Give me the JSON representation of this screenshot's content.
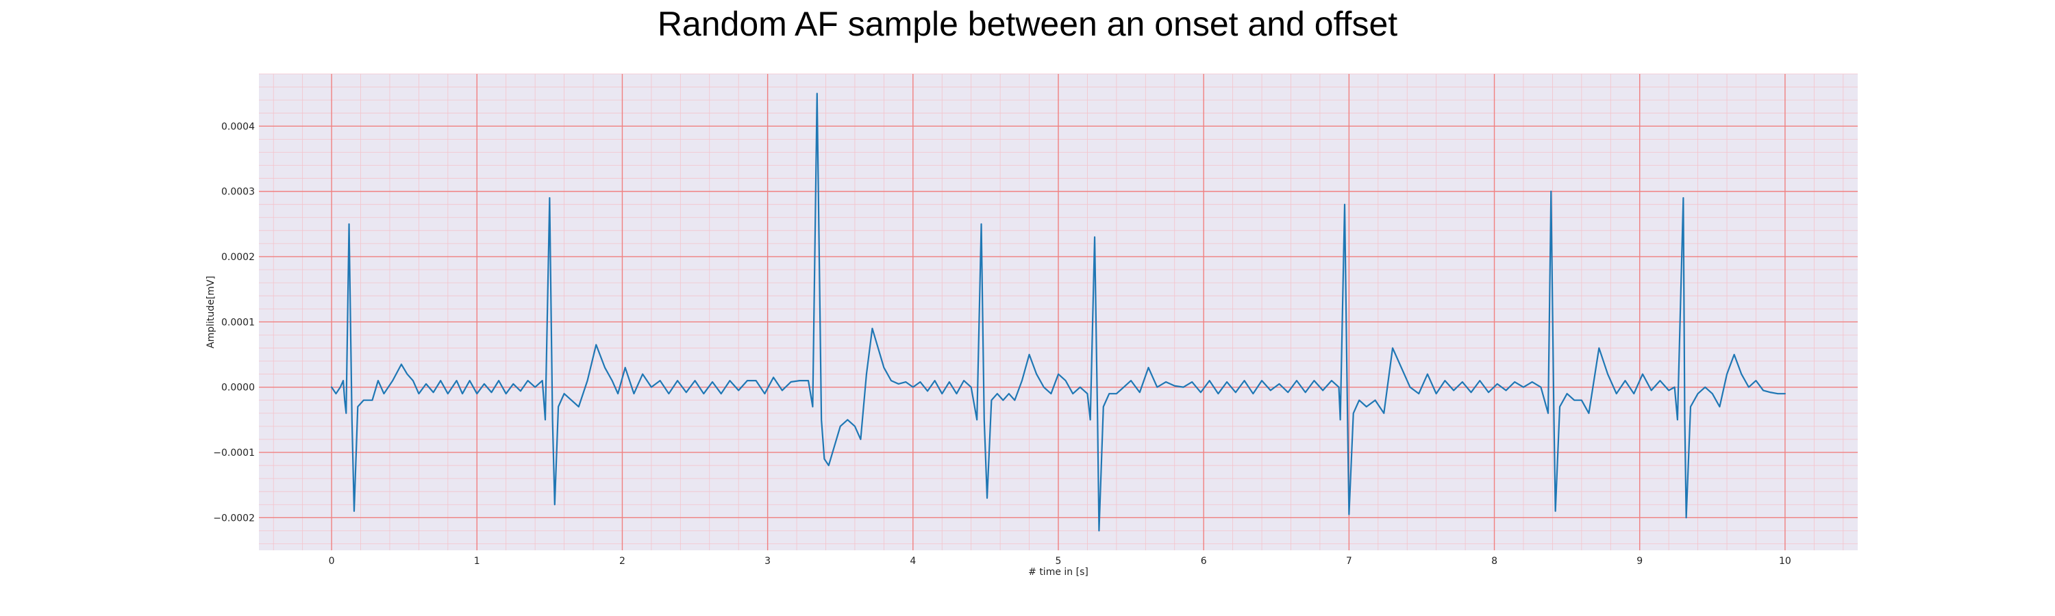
{
  "chart_data": {
    "type": "line",
    "title": "Random AF sample between an onset and offset",
    "xlabel": "# time in [s]",
    "ylabel": "Amplitude[mV]",
    "xlim": [
      -0.5,
      10.5
    ],
    "ylim": [
      -0.00025,
      0.00048
    ],
    "xticks": [
      0,
      1,
      2,
      3,
      4,
      5,
      6,
      7,
      8,
      9,
      10
    ],
    "xtick_labels": [
      "0",
      "1",
      "2",
      "3",
      "4",
      "5",
      "6",
      "7",
      "8",
      "9",
      "10"
    ],
    "yticks": [
      -0.0002,
      -0.0001,
      0.0,
      0.0001,
      0.0002,
      0.0003,
      0.0004
    ],
    "ytick_labels": [
      "−0.0002",
      "−0.0001",
      "0.0000",
      "0.0001",
      "0.0002",
      "0.0003",
      "0.0004"
    ],
    "grid": true,
    "minor_grid": true,
    "colors": {
      "line": "#1f77b4",
      "plot_background": "#eae7f2",
      "major_grid": "#f08080",
      "minor_grid": "#f4c3cb"
    },
    "series": [
      {
        "values": [
          [
            0.0,
            0.0
          ],
          [
            0.03,
            -1e-05
          ],
          [
            0.06,
            0.0
          ],
          [
            0.08,
            1e-05
          ],
          [
            0.09,
            -2e-05
          ],
          [
            0.1,
            -4e-05
          ],
          [
            0.12,
            0.00025
          ],
          [
            0.14,
            -5e-05
          ],
          [
            0.155,
            -0.00019
          ],
          [
            0.18,
            -3e-05
          ],
          [
            0.22,
            -2e-05
          ],
          [
            0.28,
            -2e-05
          ],
          [
            0.32,
            1e-05
          ],
          [
            0.36,
            -1e-05
          ],
          [
            0.42,
            1e-05
          ],
          [
            0.48,
            3.5e-05
          ],
          [
            0.52,
            2e-05
          ],
          [
            0.56,
            1e-05
          ],
          [
            0.6,
            -1e-05
          ],
          [
            0.65,
            5e-06
          ],
          [
            0.7,
            -8e-06
          ],
          [
            0.75,
            1e-05
          ],
          [
            0.8,
            -1e-05
          ],
          [
            0.86,
            1e-05
          ],
          [
            0.9,
            -1e-05
          ],
          [
            0.95,
            1e-05
          ],
          [
            1.0,
            -1e-05
          ],
          [
            1.05,
            5e-06
          ],
          [
            1.1,
            -8e-06
          ],
          [
            1.15,
            1e-05
          ],
          [
            1.2,
            -1e-05
          ],
          [
            1.25,
            5e-06
          ],
          [
            1.3,
            -6e-06
          ],
          [
            1.35,
            1e-05
          ],
          [
            1.4,
            0.0
          ],
          [
            1.45,
            1e-05
          ],
          [
            1.47,
            -5e-05
          ],
          [
            1.5,
            0.00029
          ],
          [
            1.52,
            -5e-05
          ],
          [
            1.535,
            -0.00018
          ],
          [
            1.56,
            -3e-05
          ],
          [
            1.6,
            -1e-05
          ],
          [
            1.65,
            -2e-05
          ],
          [
            1.7,
            -3e-05
          ],
          [
            1.76,
            1e-05
          ],
          [
            1.82,
            6.5e-05
          ],
          [
            1.88,
            3e-05
          ],
          [
            1.93,
            1e-05
          ],
          [
            1.97,
            -1e-05
          ],
          [
            2.02,
            3e-05
          ],
          [
            2.08,
            -1e-05
          ],
          [
            2.14,
            2e-05
          ],
          [
            2.2,
            0.0
          ],
          [
            2.26,
            1e-05
          ],
          [
            2.32,
            -1e-05
          ],
          [
            2.38,
            1e-05
          ],
          [
            2.44,
            -8e-06
          ],
          [
            2.5,
            1e-05
          ],
          [
            2.56,
            -1e-05
          ],
          [
            2.62,
            8e-06
          ],
          [
            2.68,
            -1e-05
          ],
          [
            2.74,
            1e-05
          ],
          [
            2.8,
            -5e-06
          ],
          [
            2.86,
            1e-05
          ],
          [
            2.92,
            1e-05
          ],
          [
            2.98,
            -1e-05
          ],
          [
            3.04,
            1.5e-05
          ],
          [
            3.1,
            -5e-06
          ],
          [
            3.16,
            8e-06
          ],
          [
            3.22,
            1e-05
          ],
          [
            3.28,
            1e-05
          ],
          [
            3.31,
            -3e-05
          ],
          [
            3.34,
            0.00045
          ],
          [
            3.37,
            -5e-05
          ],
          [
            3.39,
            -0.00011
          ],
          [
            3.42,
            -0.00012
          ],
          [
            3.46,
            -9e-05
          ],
          [
            3.5,
            -6e-05
          ],
          [
            3.55,
            -5e-05
          ],
          [
            3.6,
            -6e-05
          ],
          [
            3.64,
            -8e-05
          ],
          [
            3.68,
            2e-05
          ],
          [
            3.72,
            9e-05
          ],
          [
            3.76,
            6e-05
          ],
          [
            3.8,
            3e-05
          ],
          [
            3.85,
            1e-05
          ],
          [
            3.9,
            5e-06
          ],
          [
            3.95,
            8e-06
          ],
          [
            4.0,
            0.0
          ],
          [
            4.05,
            8e-06
          ],
          [
            4.1,
            -6e-06
          ],
          [
            4.15,
            1e-05
          ],
          [
            4.2,
            -1e-05
          ],
          [
            4.25,
            8e-06
          ],
          [
            4.3,
            -1e-05
          ],
          [
            4.35,
            1e-05
          ],
          [
            4.4,
            0.0
          ],
          [
            4.44,
            -5e-05
          ],
          [
            4.47,
            0.00025
          ],
          [
            4.49,
            -5e-05
          ],
          [
            4.51,
            -0.00017
          ],
          [
            4.54,
            -2e-05
          ],
          [
            4.58,
            -1e-05
          ],
          [
            4.62,
            -2e-05
          ],
          [
            4.66,
            -1e-05
          ],
          [
            4.7,
            -2e-05
          ],
          [
            4.75,
            1e-05
          ],
          [
            4.8,
            5e-05
          ],
          [
            4.85,
            2e-05
          ],
          [
            4.9,
            0.0
          ],
          [
            4.95,
            -1e-05
          ],
          [
            5.0,
            2e-05
          ],
          [
            5.05,
            1e-05
          ],
          [
            5.1,
            -1e-05
          ],
          [
            5.15,
            0.0
          ],
          [
            5.2,
            -1e-05
          ],
          [
            5.22,
            -5e-05
          ],
          [
            5.25,
            0.00023
          ],
          [
            5.27,
            -5e-05
          ],
          [
            5.28,
            -0.00022
          ],
          [
            5.31,
            -3e-05
          ],
          [
            5.35,
            -1e-05
          ],
          [
            5.4,
            -1e-05
          ],
          [
            5.45,
            0.0
          ],
          [
            5.5,
            1e-05
          ],
          [
            5.56,
            -8e-06
          ],
          [
            5.62,
            3e-05
          ],
          [
            5.68,
            0.0
          ],
          [
            5.74,
            8e-06
          ],
          [
            5.8,
            2e-06
          ],
          [
            5.86,
            0.0
          ],
          [
            5.92,
            8e-06
          ],
          [
            5.98,
            -8e-06
          ],
          [
            6.04,
            1e-05
          ],
          [
            6.1,
            -1e-05
          ],
          [
            6.16,
            8e-06
          ],
          [
            6.22,
            -8e-06
          ],
          [
            6.28,
            1e-05
          ],
          [
            6.34,
            -1e-05
          ],
          [
            6.4,
            1e-05
          ],
          [
            6.46,
            -5e-06
          ],
          [
            6.52,
            5e-06
          ],
          [
            6.58,
            -8e-06
          ],
          [
            6.64,
            1e-05
          ],
          [
            6.7,
            -8e-06
          ],
          [
            6.76,
            1e-05
          ],
          [
            6.82,
            -5e-06
          ],
          [
            6.88,
            1e-05
          ],
          [
            6.93,
            0.0
          ],
          [
            6.94,
            -5e-05
          ],
          [
            6.97,
            0.00028
          ],
          [
            6.99,
            -5e-05
          ],
          [
            7.0,
            -0.000195
          ],
          [
            7.03,
            -4e-05
          ],
          [
            7.07,
            -2e-05
          ],
          [
            7.12,
            -3e-05
          ],
          [
            7.18,
            -2e-05
          ],
          [
            7.24,
            -4e-05
          ],
          [
            7.3,
            6e-05
          ],
          [
            7.36,
            3e-05
          ],
          [
            7.42,
            0.0
          ],
          [
            7.48,
            -1e-05
          ],
          [
            7.54,
            2e-05
          ],
          [
            7.6,
            -1e-05
          ],
          [
            7.66,
            1e-05
          ],
          [
            7.72,
            -5e-06
          ],
          [
            7.78,
            8e-06
          ],
          [
            7.84,
            -8e-06
          ],
          [
            7.9,
            1e-05
          ],
          [
            7.96,
            -8e-06
          ],
          [
            8.02,
            5e-06
          ],
          [
            8.08,
            -5e-06
          ],
          [
            8.14,
            8e-06
          ],
          [
            8.2,
            0.0
          ],
          [
            8.26,
            8e-06
          ],
          [
            8.32,
            0.0
          ],
          [
            8.37,
            -4e-05
          ],
          [
            8.39,
            0.0003
          ],
          [
            8.41,
            -5e-05
          ],
          [
            8.42,
            -0.00019
          ],
          [
            8.45,
            -3e-05
          ],
          [
            8.5,
            -1e-05
          ],
          [
            8.55,
            -2e-05
          ],
          [
            8.6,
            -2e-05
          ],
          [
            8.65,
            -4e-05
          ],
          [
            8.72,
            6e-05
          ],
          [
            8.78,
            2e-05
          ],
          [
            8.84,
            -1e-05
          ],
          [
            8.9,
            1e-05
          ],
          [
            8.96,
            -1e-05
          ],
          [
            9.02,
            2e-05
          ],
          [
            9.08,
            -5e-06
          ],
          [
            9.14,
            1e-05
          ],
          [
            9.2,
            -5e-06
          ],
          [
            9.24,
            0.0
          ],
          [
            9.26,
            -5e-05
          ],
          [
            9.3,
            0.00029
          ],
          [
            9.31,
            -5e-05
          ],
          [
            9.32,
            -0.0002
          ],
          [
            9.35,
            -3e-05
          ],
          [
            9.4,
            -1e-05
          ],
          [
            9.45,
            0.0
          ],
          [
            9.5,
            -1e-05
          ],
          [
            9.55,
            -3e-05
          ],
          [
            9.6,
            2e-05
          ],
          [
            9.65,
            5e-05
          ],
          [
            9.7,
            2e-05
          ],
          [
            9.75,
            0.0
          ],
          [
            9.8,
            1e-05
          ],
          [
            9.85,
            -5e-06
          ],
          [
            9.9,
            -8e-06
          ],
          [
            9.95,
            -1e-05
          ],
          [
            10.0,
            -1e-05
          ]
        ]
      }
    ]
  }
}
